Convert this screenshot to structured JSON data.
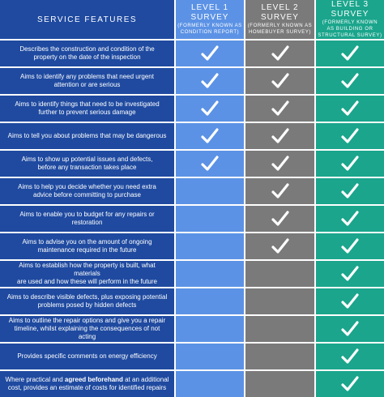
{
  "colors": {
    "feature_col": "#1f4aa0",
    "level1": "#5b92e5",
    "level2": "#7a7a7a",
    "level3": "#1aa58c",
    "check": "#ffffff"
  },
  "headers": {
    "features": "SERVICE FEATURES",
    "level1": {
      "title": "LEVEL 1 SURVEY",
      "subtitle_1": "(FORMERLY KNOWN AS",
      "subtitle_2": "CONDITION REPORT)"
    },
    "level2": {
      "title": "LEVEL 2 SURVEY",
      "subtitle_1": "(FORMERLY KNOWN AS",
      "subtitle_2": "HOMEBUYER SURVEY)"
    },
    "level3": {
      "title": "LEVEL 3 SURVEY",
      "subtitle_1": "(FORMERLY KNOWN",
      "subtitle_2": "AS BUILDING OR",
      "subtitle_3": "STRUCTURAL SURVEY)"
    }
  },
  "check_icon": "check-icon",
  "rows": [
    {
      "line1": "Describes the construction and condition of the",
      "line2": "property on the date of the inspection",
      "l1": true,
      "l2": true,
      "l3": true
    },
    {
      "line1": "Aims to identify any problems that need urgent",
      "line2": "attention or are serious",
      "l1": true,
      "l2": true,
      "l3": true
    },
    {
      "line1": "Aims to identify things that need to be investigated",
      "line2": "further to prevent serious damage",
      "l1": true,
      "l2": true,
      "l3": true
    },
    {
      "line1": "Aims to tell you about problems that may be dangerous",
      "line2": "",
      "l1": true,
      "l2": true,
      "l3": true
    },
    {
      "line1": "Aims to show up potential issues and defects,",
      "line2": "before any transaction takes place",
      "l1": true,
      "l2": true,
      "l3": true
    },
    {
      "line1": "Aims to help you decide whether you need extra",
      "line2": "advice before committing to purchase",
      "l1": false,
      "l2": true,
      "l3": true
    },
    {
      "line1": "Aims to enable you to budget for any repairs or restoration",
      "line2": "",
      "l1": false,
      "l2": true,
      "l3": true
    },
    {
      "line1": "Aims to advise you on the amount of ongoing",
      "line2": "maintenance required in the future",
      "l1": false,
      "l2": true,
      "l3": true
    },
    {
      "line1": "Aims to establish how the property is built, what materials",
      "line2": "are used and how these will perform in the future",
      "l1": false,
      "l2": false,
      "l3": true
    },
    {
      "line1": "Aims to describe visible defects, plus exposing potential",
      "line2": "problems posed by hidden defects",
      "l1": false,
      "l2": false,
      "l3": true
    },
    {
      "line1": "Aims to outline the repair options and give you a repair",
      "line2": "timeline, whilst explaining the consequences of not acting",
      "l1": false,
      "l2": false,
      "l3": true
    },
    {
      "line1": "Provides specific comments on energy efficiency",
      "line2": "",
      "l1": false,
      "l2": false,
      "l3": true
    }
  ],
  "last_row": {
    "pre": "Where practical and ",
    "bold": "agreed beforehand",
    "post": " at an additional",
    "line2": "cost, provides an estimate of costs for identified repairs",
    "l1": false,
    "l2": false,
    "l3": true
  }
}
